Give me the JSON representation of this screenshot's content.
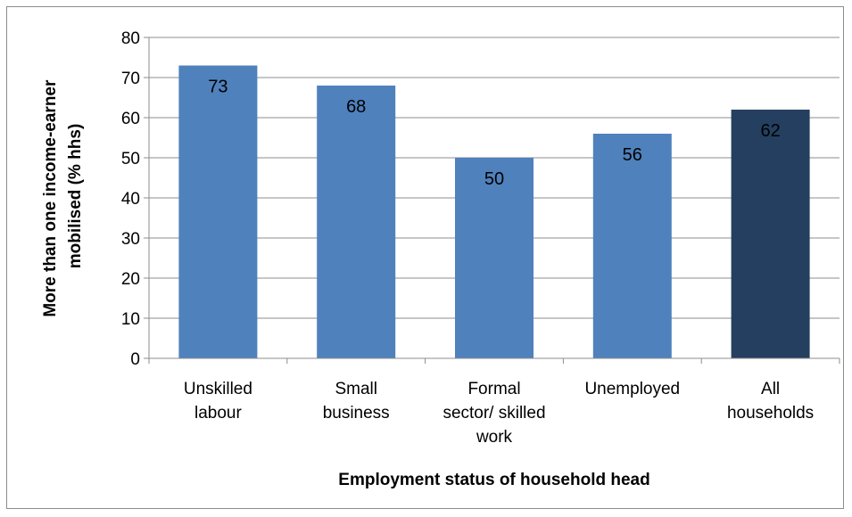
{
  "chart_data": {
    "type": "bar",
    "categories": [
      [
        "Unskilled",
        "labour"
      ],
      [
        "Small",
        "business"
      ],
      [
        "Formal",
        "sector/ skilled",
        "work"
      ],
      [
        "Unemployed"
      ],
      [
        "All",
        "households"
      ]
    ],
    "values": [
      73,
      68,
      50,
      56,
      62
    ],
    "bar_colors": [
      "#4f81bd",
      "#4f81bd",
      "#4f81bd",
      "#4f81bd",
      "#243f60"
    ],
    "xlabel": "Employment status of household head",
    "ylabel": [
      "More than one income-earner",
      "mobilised (% hhs)"
    ],
    "ylim": [
      0,
      80
    ],
    "yticks": [
      0,
      10,
      20,
      30,
      40,
      50,
      60,
      70,
      80
    ],
    "grid": true,
    "legend": "none"
  }
}
